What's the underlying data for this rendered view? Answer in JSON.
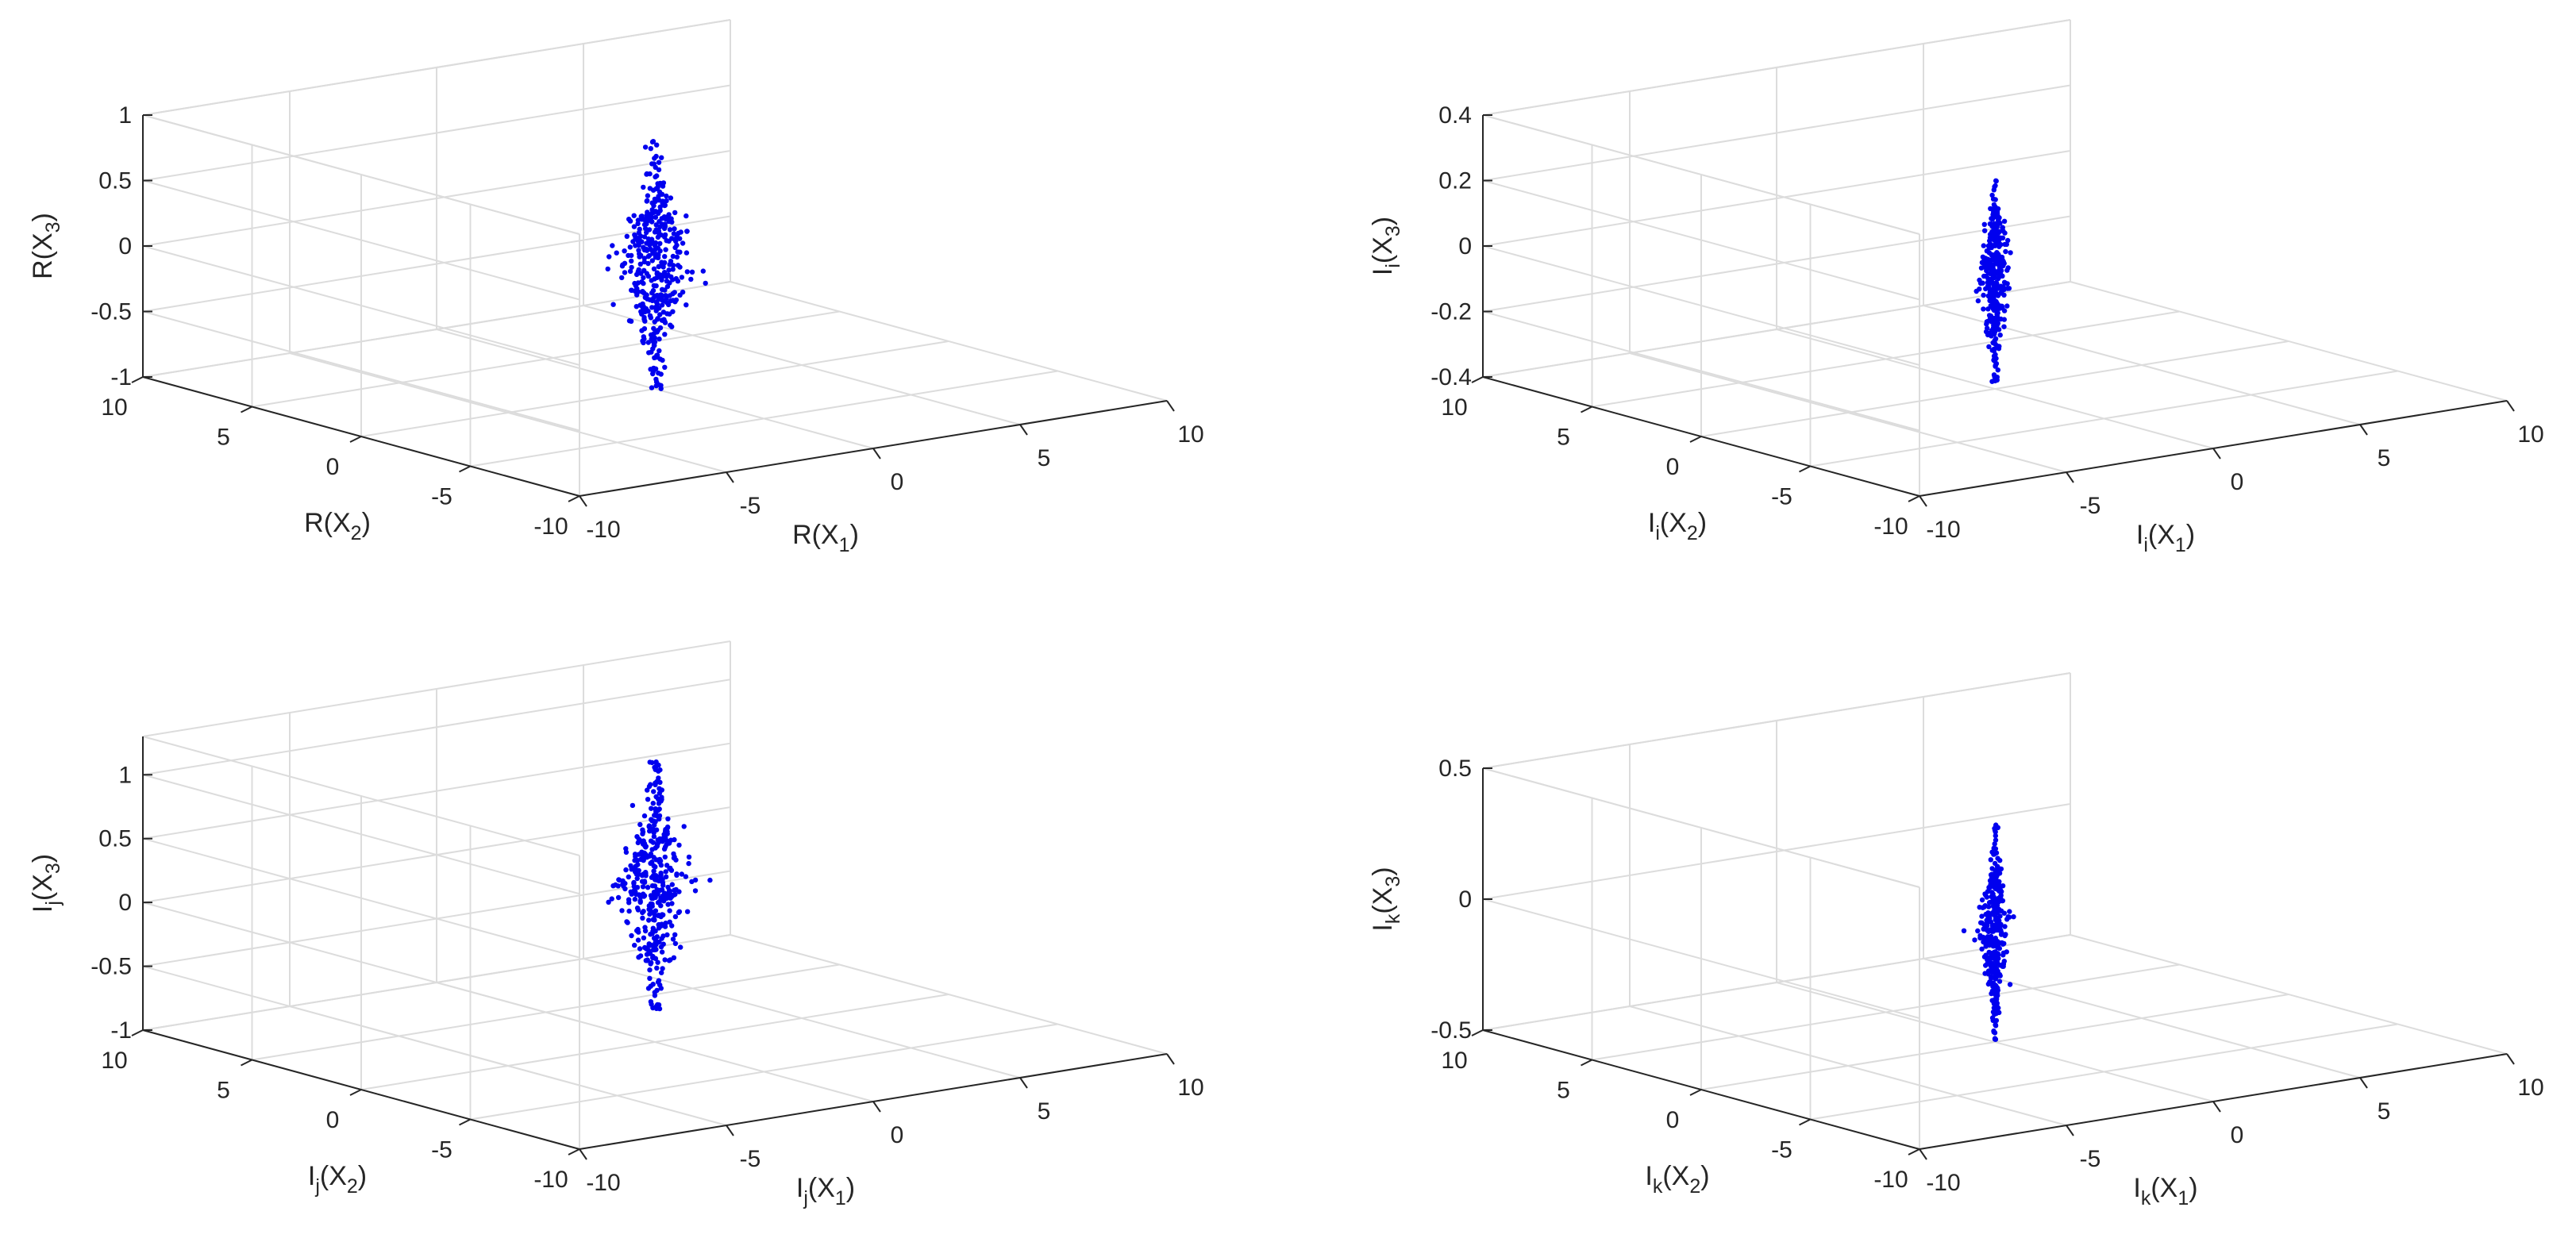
{
  "chart_data": [
    {
      "type": "scatter3d",
      "xlabel": {
        "base": "R(X",
        "sub": "1",
        "close": ")"
      },
      "ylabel": {
        "base": "R(X",
        "sub": "2",
        "close": ")"
      },
      "zlabel": {
        "base": "R(X",
        "sub": "3",
        "close": ")"
      },
      "xlim": [
        -10,
        10
      ],
      "ylim": [
        -10,
        10
      ],
      "zlim": [
        -1,
        1
      ],
      "xticks": [
        "-10",
        "-5",
        "0",
        "5",
        "10"
      ],
      "yticks": [
        "-10",
        "-5",
        "0",
        "5",
        "10"
      ],
      "zticks": [
        "-1",
        "-0.5",
        "0",
        "0.5",
        "1"
      ],
      "grid": true,
      "point_color": "#0000ee",
      "cloud": {
        "x_center": 0,
        "y_center": 0,
        "z_min": -1.0,
        "z_max": 0.9,
        "count": 400
      }
    },
    {
      "type": "scatter3d",
      "xlabel": {
        "base": "I",
        "sub": "i",
        "mid": "(X",
        "sub2": "1",
        "close": ")"
      },
      "ylabel": {
        "base": "I",
        "sub": "i",
        "mid": "(X",
        "sub2": "2",
        "close": ")"
      },
      "zlabel": {
        "base": "I",
        "sub": "i",
        "mid": "(X",
        "sub2": "3",
        "close": ")"
      },
      "xlim": [
        -10,
        10
      ],
      "ylim": [
        -10,
        10
      ],
      "zlim": [
        -0.4,
        0.4
      ],
      "xticks": [
        "-10",
        "-5",
        "0",
        "5",
        "10"
      ],
      "yticks": [
        "-10",
        "-5",
        "0",
        "5",
        "10"
      ],
      "zticks": [
        "-0.4",
        "-0.2",
        "0",
        "0.2",
        "0.4"
      ],
      "grid": true,
      "point_color": "#0000ee",
      "cloud": {
        "x_center": 0,
        "y_center": 0,
        "z_min": -0.38,
        "z_max": 0.24,
        "count": 350
      }
    },
    {
      "type": "scatter3d",
      "xlabel": {
        "base": "I",
        "sub": "j",
        "mid": "(X",
        "sub2": "1",
        "close": ")"
      },
      "ylabel": {
        "base": "I",
        "sub": "j",
        "mid": "(X",
        "sub2": "2",
        "close": ")"
      },
      "zlabel": {
        "base": "I",
        "sub": "j",
        "mid": "(X",
        "sub2": "3",
        "close": ")"
      },
      "xlim": [
        -10,
        10
      ],
      "ylim": [
        -10,
        10
      ],
      "zlim": [
        -1,
        1.3
      ],
      "xticks": [
        "-10",
        "-5",
        "0",
        "5",
        "10"
      ],
      "yticks": [
        "-10",
        "-5",
        "0",
        "5",
        "10"
      ],
      "zticks": [
        "-1",
        "-0.5",
        "0",
        "0.5",
        "1"
      ],
      "ztick_values": [
        -1,
        -0.5,
        0,
        0.5,
        1
      ],
      "grid": true,
      "point_color": "#0000ee",
      "cloud": {
        "x_center": 0,
        "y_center": 0,
        "z_min": -0.75,
        "z_max": 1.2,
        "count": 400
      }
    },
    {
      "type": "scatter3d",
      "xlabel": {
        "base": "I",
        "sub": "k",
        "mid": "(X",
        "sub2": "1",
        "close": ")"
      },
      "ylabel": {
        "base": "I",
        "sub": "k",
        "mid": "(X",
        "sub2": "2",
        "close": ")"
      },
      "zlabel": {
        "base": "I",
        "sub": "k",
        "mid": "(X",
        "sub2": "3",
        "close": ")"
      },
      "xlim": [
        -10,
        10
      ],
      "ylim": [
        -10,
        10
      ],
      "zlim": [
        -0.5,
        0.5
      ],
      "xticks": [
        "-10",
        "-5",
        "0",
        "5",
        "10"
      ],
      "yticks": [
        "-10",
        "-5",
        "0",
        "5",
        "10"
      ],
      "zticks": [
        "-0.5",
        "0",
        "0.5"
      ],
      "grid": true,
      "point_color": "#0000ee",
      "cloud": {
        "x_center": 0,
        "y_center": 0,
        "z_min": -0.5,
        "z_max": 0.33,
        "count": 350
      }
    }
  ]
}
